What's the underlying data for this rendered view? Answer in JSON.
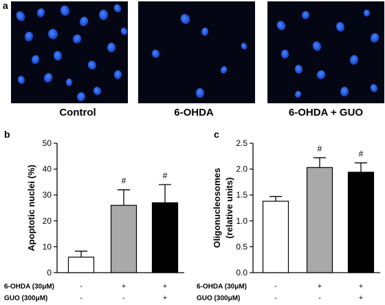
{
  "panel_a": {
    "letter": "a",
    "images": [
      {
        "label": "Control"
      },
      {
        "label": "6-OHDA"
      },
      {
        "label": "6-OHDA + GUO"
      }
    ]
  },
  "chart_data": [
    {
      "panel": "b",
      "type": "bar",
      "ylabel": "Apoptotic nuclei (%)",
      "ylim": [
        0,
        50
      ],
      "yticks": [
        0,
        10,
        20,
        30,
        40,
        50
      ],
      "categories": [
        "Control",
        "6-OHDA",
        "6-OHDA + GUO"
      ],
      "values": [
        6,
        26,
        27
      ],
      "errors": [
        2.3,
        6,
        7
      ],
      "bar_colors": [
        "#ffffff",
        "#a9a9a9",
        "#000000"
      ],
      "annotations": [
        "",
        "#",
        "#"
      ],
      "condition_rows": [
        {
          "label": "6-OHDA (30μM)",
          "marks": [
            "-",
            "+",
            "+"
          ]
        },
        {
          "label": "GUO (300μM)",
          "marks": [
            "-",
            "-",
            "+"
          ]
        }
      ],
      "grid": false
    },
    {
      "panel": "c",
      "type": "bar",
      "ylabel": [
        "Oligonucleosomes",
        "(relative units)"
      ],
      "ylim": [
        0,
        2.5
      ],
      "yticks": [
        "0.0",
        "0.5",
        "1.0",
        "1.5",
        "2.0",
        "2.5"
      ],
      "categories": [
        "Control",
        "6-OHDA",
        "6-OHDA + GUO"
      ],
      "values": [
        1.38,
        2.03,
        1.94
      ],
      "errors": [
        0.09,
        0.19,
        0.18
      ],
      "bar_colors": [
        "#ffffff",
        "#a9a9a9",
        "#000000"
      ],
      "annotations": [
        "",
        "#",
        "#"
      ],
      "condition_rows": [
        {
          "label": "6-OHDA (30μM)",
          "marks": [
            "-",
            "+",
            "+"
          ]
        },
        {
          "label": "GUO (300μM)",
          "marks": [
            "-",
            "-",
            "+"
          ]
        }
      ],
      "grid": false
    }
  ]
}
